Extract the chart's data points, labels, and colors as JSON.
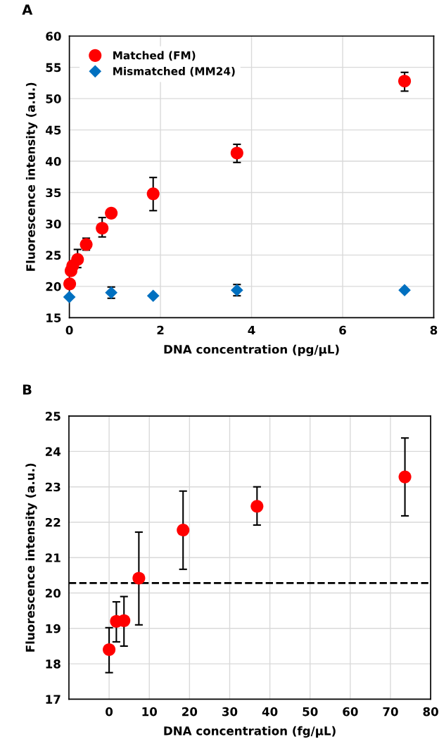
{
  "chart_data": [
    {
      "type": "scatter",
      "title": "A",
      "xlabel": "DNA concentration (pg/µL)",
      "ylabel": "Fluorescence intensity (a.u.)",
      "xlim": [
        0,
        8
      ],
      "xticks": [
        0,
        2,
        4,
        6,
        8
      ],
      "ylim": [
        15,
        60
      ],
      "yticks": [
        15,
        20,
        25,
        30,
        35,
        40,
        45,
        50,
        55,
        60
      ],
      "grid": true,
      "legend": "top left",
      "series": [
        {
          "name": "Matched (FM)",
          "color": "#ff0000",
          "marker": "circle",
          "x": [
            0.0074,
            0.0368,
            0.0736,
            0.18,
            0.37,
            0.72,
            0.92,
            1.84,
            3.68,
            7.36
          ],
          "values": [
            20.4,
            22.5,
            23.3,
            24.3,
            26.7,
            29.3,
            31.7,
            34.8,
            41.3,
            52.8
          ],
          "errors": [
            null,
            null,
            null,
            [
              23.0,
              25.9
            ],
            [
              25.8,
              27.7
            ],
            [
              27.9,
              31.0
            ],
            null,
            [
              32.1,
              37.4
            ],
            [
              39.8,
              42.7
            ],
            [
              51.2,
              54.2
            ]
          ]
        },
        {
          "name": "Mismatched (MM24)",
          "color": "#0070c0",
          "marker": "diamond",
          "x": [
            0,
            0.92,
            1.84,
            3.68,
            7.36
          ],
          "values": [
            18.3,
            19.0,
            18.5,
            19.4,
            19.4
          ],
          "errors": [
            null,
            [
              18.1,
              19.9
            ],
            null,
            [
              18.5,
              20.3
            ],
            null
          ]
        }
      ]
    },
    {
      "type": "scatter",
      "title": "B",
      "xlabel": "DNA concentration (fg/µL)",
      "ylabel": "Fluorescence intensity (a.u.)",
      "xlim": [
        -10,
        80
      ],
      "xticks": [
        0,
        10,
        20,
        30,
        40,
        50,
        60,
        70,
        80
      ],
      "ylim": [
        17,
        25
      ],
      "yticks": [
        17,
        18,
        19,
        20,
        21,
        22,
        23,
        24,
        25
      ],
      "grid": true,
      "ref_lines": [
        {
          "axis": "y",
          "value": 20.28,
          "line_style": "dashed",
          "color": "#000000"
        }
      ],
      "series": [
        {
          "color": "#ff0000",
          "marker": "circle",
          "x": [
            0,
            1.8,
            3.7,
            7.4,
            18.4,
            36.8,
            73.6
          ],
          "values": [
            18.4,
            19.2,
            19.22,
            20.42,
            21.78,
            22.45,
            23.28
          ],
          "errors": [
            [
              17.75,
              19.02
            ],
            [
              18.62,
              19.75
            ],
            [
              18.5,
              19.9
            ],
            [
              19.1,
              21.72
            ],
            [
              20.67,
              22.88
            ],
            [
              21.92,
              23.0
            ],
            [
              22.18,
              24.38
            ]
          ]
        }
      ]
    }
  ]
}
